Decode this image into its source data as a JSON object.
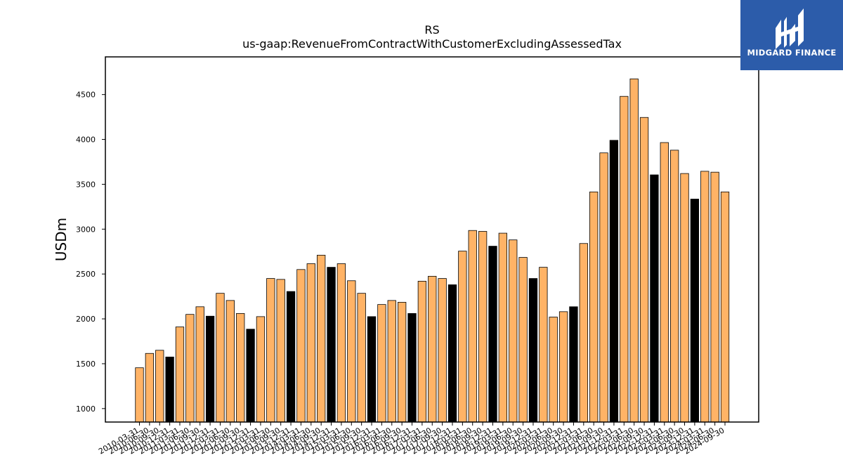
{
  "logo": {
    "text": "MIDGARD FINANCE",
    "color": "#2c5caa"
  },
  "chart_data": {
    "type": "bar",
    "title": "RS",
    "subtitle": "us-gaap:RevenueFromContractWithCustomerExcludingAssessedTax",
    "xlabel": "",
    "ylabel": "USDm",
    "ylim": [
      850,
      4920
    ],
    "yticks": [
      1000,
      1500,
      2000,
      2500,
      3000,
      3500,
      4000,
      4500
    ],
    "grid": false,
    "colors": {
      "quarter": "#ffb366",
      "year_end": "#000000",
      "edge": "#000000"
    },
    "categories": [
      "2010-03-31",
      "2010-06-30",
      "2010-09-30",
      "2010-12-31",
      "2011-03-31",
      "2011-06-30",
      "2011-09-30",
      "2011-12-31",
      "2012-03-31",
      "2012-06-30",
      "2012-09-30",
      "2012-12-31",
      "2013-03-31",
      "2013-06-30",
      "2013-09-30",
      "2013-12-31",
      "2014-03-31",
      "2014-06-30",
      "2014-09-30",
      "2014-12-31",
      "2015-03-31",
      "2015-06-30",
      "2015-09-30",
      "2015-12-31",
      "2016-03-31",
      "2016-06-30",
      "2016-09-30",
      "2016-12-31",
      "2017-03-31",
      "2017-06-30",
      "2017-09-30",
      "2017-12-31",
      "2018-03-31",
      "2018-06-30",
      "2018-09-30",
      "2018-12-31",
      "2019-03-31",
      "2019-06-30",
      "2019-09-30",
      "2019-12-31",
      "2020-03-31",
      "2020-06-30",
      "2020-09-30",
      "2020-12-31",
      "2021-03-31",
      "2021-06-30",
      "2021-09-30",
      "2021-12-31",
      "2022-03-31",
      "2022-06-30",
      "2022-09-30",
      "2022-12-31",
      "2023-03-31",
      "2023-06-30",
      "2023-09-30",
      "2023-12-31",
      "2024-03-31",
      "2024-06-30",
      "2024-09-30"
    ],
    "values": [
      1455,
      1615,
      1650,
      1575,
      1910,
      2050,
      2135,
      2030,
      2285,
      2205,
      2060,
      1885,
      2025,
      2450,
      2440,
      2305,
      2550,
      2615,
      2710,
      2575,
      2615,
      2425,
      2285,
      2025,
      2160,
      2205,
      2185,
      2060,
      2420,
      2475,
      2450,
      2380,
      2755,
      2985,
      2975,
      2810,
      2955,
      2880,
      2685,
      2450,
      2575,
      2020,
      2080,
      2135,
      2840,
      3415,
      3850,
      3990,
      4480,
      4675,
      4245,
      3605,
      3965,
      3880,
      3620,
      3335,
      3645,
      3635,
      3415
    ],
    "highlight_rule": "bars dated 12-31 are drawn black"
  }
}
